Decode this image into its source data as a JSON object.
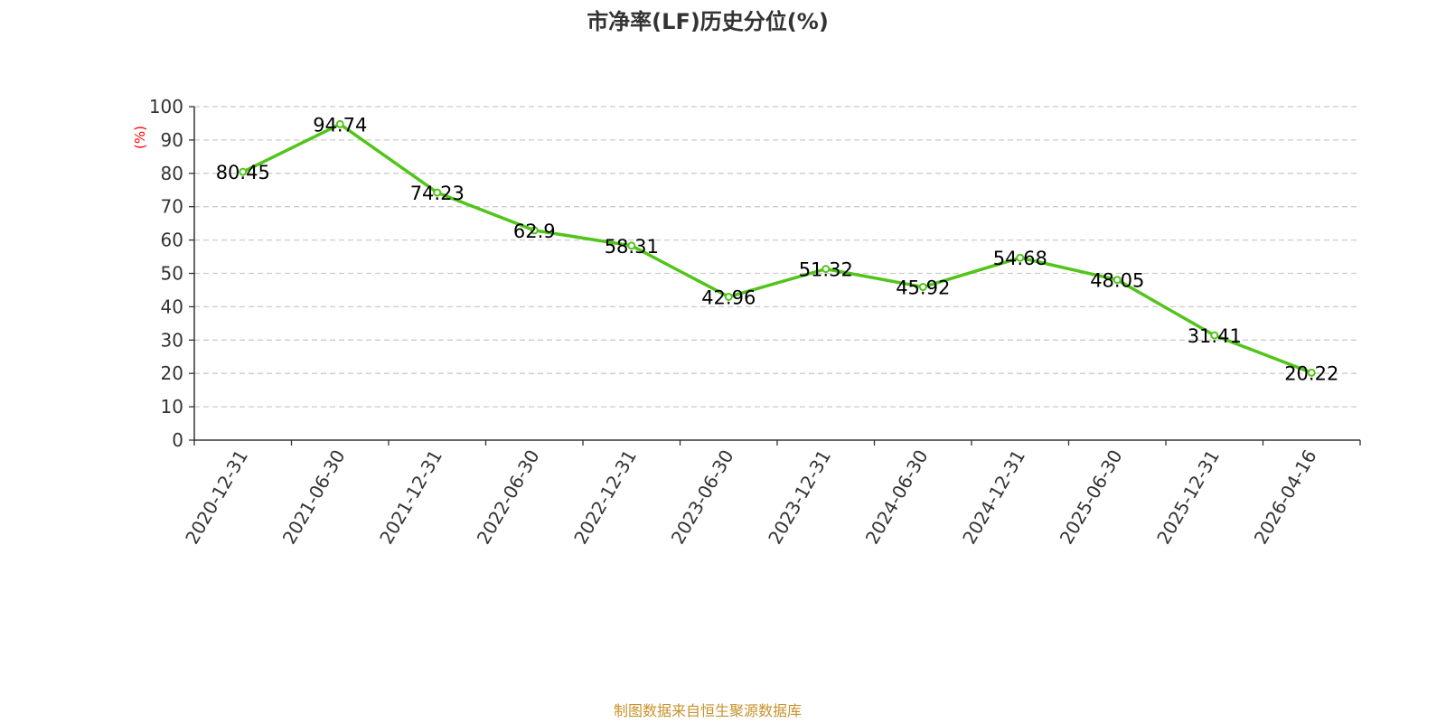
{
  "chart_data": {
    "type": "line",
    "title": "市净率(LF)历史分位(%)",
    "ylabel": "(%)",
    "xlabel": "",
    "categories": [
      "2020-12-31",
      "2021-06-30",
      "2021-12-31",
      "2022-06-30",
      "2022-12-31",
      "2023-06-30",
      "2023-12-31",
      "2024-06-30",
      "2024-12-31",
      "2025-06-30",
      "2025-12-31",
      "2026-04-16"
    ],
    "series": [
      {
        "values": [
          80.45,
          94.74,
          74.23,
          62.9,
          58.31,
          42.96,
          51.32,
          45.92,
          54.68,
          48.05,
          31.41,
          20.22
        ]
      }
    ],
    "ylim": [
      0,
      100
    ],
    "yticks": [
      0,
      10,
      20,
      30,
      40,
      50,
      60,
      70,
      80,
      90,
      100
    ],
    "grid": true,
    "legend": "none",
    "colors": {
      "line": "#52c41a",
      "ylabel": "#ff0000",
      "source": "#c8922a"
    }
  },
  "source": "制图数据来自恒生聚源数据库"
}
